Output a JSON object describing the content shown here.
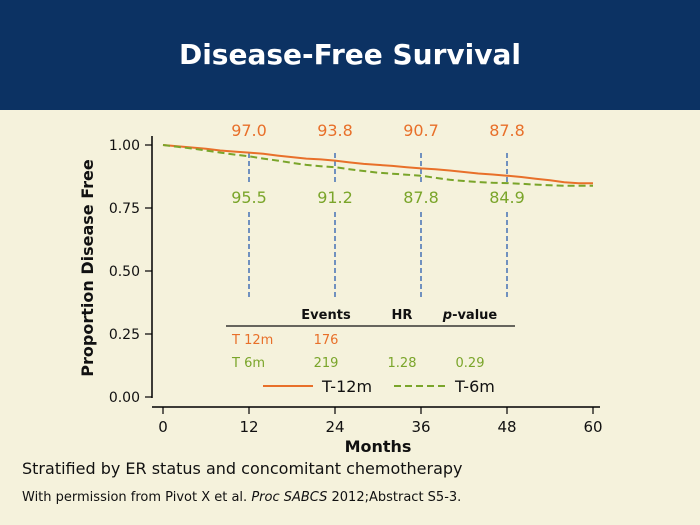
{
  "slide": {
    "title": "Disease-Free Survival",
    "footnote": "Stratified by ER status and concomitant chemotherapy",
    "citation": {
      "prefix": "With permission from Pivot X et al. ",
      "journal": "Proc SABCS",
      "suffix": " 2012;Abstract S5-3."
    }
  },
  "colors": {
    "header_bg": "#0c3263",
    "background": "#f5f2dc",
    "t12m": "#e8702a",
    "t6m": "#7aa52a",
    "marker_line": "#4f79b8",
    "axis": "#000000"
  },
  "chart_data": {
    "type": "line",
    "title": "",
    "xlabel": "Months",
    "ylabel": "Proportion Disease Free",
    "xlim": [
      0,
      60
    ],
    "ylim": [
      0,
      1
    ],
    "x_ticks": [
      0,
      12,
      24,
      36,
      48,
      60
    ],
    "y_ticks": [
      "0.00",
      "0.25",
      "0.50",
      "0.75",
      "1.00"
    ],
    "y_tick_values": [
      0,
      0.25,
      0.5,
      0.75,
      1.0
    ],
    "grid": false,
    "legend": "bottom-center",
    "series": [
      {
        "name": "T-12m",
        "color": "#e8702a",
        "style": "solid",
        "x": [
          0,
          2,
          4,
          6,
          8,
          10,
          12,
          14,
          16,
          18,
          20,
          22,
          24,
          26,
          28,
          30,
          32,
          34,
          36,
          38,
          40,
          42,
          44,
          46,
          48,
          50,
          52,
          54,
          56,
          58,
          60
        ],
        "y": [
          1.0,
          0.995,
          0.99,
          0.985,
          0.978,
          0.974,
          0.97,
          0.965,
          0.958,
          0.952,
          0.946,
          0.943,
          0.938,
          0.931,
          0.925,
          0.921,
          0.917,
          0.912,
          0.907,
          0.904,
          0.899,
          0.893,
          0.887,
          0.883,
          0.878,
          0.873,
          0.866,
          0.86,
          0.852,
          0.848,
          0.848
        ]
      },
      {
        "name": "T-6m",
        "color": "#7aa52a",
        "style": "dashed",
        "x": [
          0,
          2,
          4,
          6,
          8,
          10,
          12,
          14,
          16,
          18,
          20,
          22,
          24,
          26,
          28,
          30,
          32,
          34,
          36,
          38,
          40,
          42,
          44,
          46,
          48,
          50,
          52,
          54,
          56,
          58,
          60
        ],
        "y": [
          1.0,
          0.993,
          0.986,
          0.978,
          0.97,
          0.962,
          0.955,
          0.946,
          0.938,
          0.929,
          0.921,
          0.916,
          0.912,
          0.904,
          0.897,
          0.89,
          0.886,
          0.882,
          0.878,
          0.87,
          0.862,
          0.857,
          0.853,
          0.85,
          0.849,
          0.846,
          0.843,
          0.84,
          0.838,
          0.838,
          0.838
        ]
      }
    ],
    "markers": [
      {
        "x": 12,
        "t12m_label": "97.0",
        "t6m_label": "95.5"
      },
      {
        "x": 24,
        "t12m_label": "93.8",
        "t6m_label": "91.2"
      },
      {
        "x": 36,
        "t12m_label": "90.7",
        "t6m_label": "87.8"
      },
      {
        "x": 48,
        "t12m_label": "87.8",
        "t6m_label": "84.9"
      }
    ],
    "table": {
      "headers": [
        "Events",
        "HR",
        "p-value"
      ],
      "rows": [
        {
          "label": "T 12m",
          "events": "176",
          "hr": "",
          "p": "",
          "color": "#e8702a"
        },
        {
          "label": "T 6m",
          "events": "219",
          "hr": "1.28",
          "p": "0.29",
          "color": "#7aa52a"
        }
      ]
    }
  }
}
